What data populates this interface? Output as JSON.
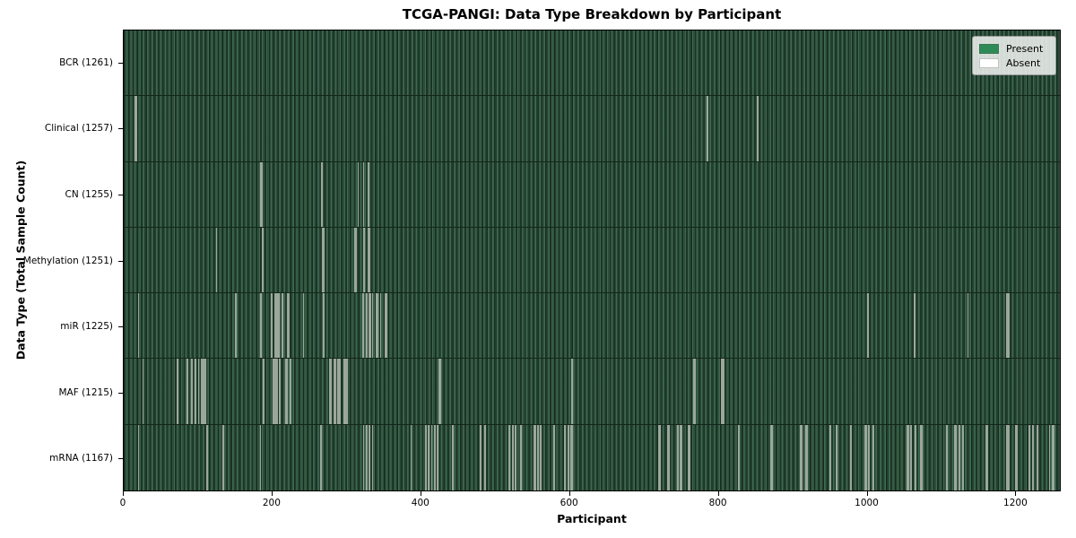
{
  "title": "TCGA-PANGI: Data Type Breakdown by Participant",
  "axes": {
    "xlabel": "Participant",
    "ylabel": "Data Type (Total Sample Count)",
    "x_ticks": [
      0,
      200,
      400,
      600,
      800,
      1000,
      1200
    ],
    "x_range": [
      0,
      1261
    ]
  },
  "legend": {
    "entries": [
      {
        "label": "Present",
        "color": "#2e8b57"
      },
      {
        "label": "Absent",
        "color": "#ffffff"
      }
    ]
  },
  "colors": {
    "present_fill": "#2e8b57",
    "present_rendered_dark": "#1f3c2c",
    "present_rendered_light": "#3f6a50",
    "absent_line": "#9ca79c",
    "plot_border": "#000000",
    "legend_bg": "#eef0ee"
  },
  "chart_data": {
    "type": "heatmap",
    "title": "TCGA-PANGI: Data Type Breakdown by Participant",
    "xlabel": "Participant",
    "ylabel": "Data Type (Total Sample Count)",
    "x_range": [
      0,
      1261
    ],
    "n_participants": 1261,
    "legend_position": "upper right",
    "grid": false,
    "rows": [
      {
        "label": "BCR (1261)",
        "name": "BCR",
        "total": 1261,
        "absent": []
      },
      {
        "label": "Clinical (1257)",
        "name": "Clinical",
        "total": 1257,
        "absent": [
          15,
          16,
          785,
          853
        ]
      },
      {
        "label": "CN (1255)",
        "name": "CN",
        "total": 1255,
        "absent": [
          184,
          185,
          266,
          315,
          322,
          329
        ]
      },
      {
        "label": "Methylation (1251)",
        "name": "Methylation",
        "total": 1251,
        "absent": [
          124,
          186,
          267,
          268,
          311,
          312,
          322,
          323,
          329,
          330
        ]
      },
      {
        "label": "miR (1225)",
        "name": "miR",
        "total": 1225,
        "absent": [
          19,
          150,
          184,
          198,
          199,
          203,
          204,
          207,
          208,
          212,
          213,
          220,
          221,
          222,
          241,
          268,
          321,
          322,
          326,
          327,
          330,
          331,
          334,
          340,
          341,
          345,
          352,
          353,
          1001,
          1002,
          1064,
          1136,
          1188,
          1189,
          1190,
          1191
        ]
      },
      {
        "label": "MAF (1215)",
        "name": "MAF",
        "total": 1215,
        "absent": [
          25,
          71,
          72,
          84,
          85,
          91,
          95,
          96,
          100,
          104,
          105,
          108,
          109,
          187,
          200,
          201,
          202,
          203,
          204,
          205,
          206,
          209,
          218,
          219,
          223,
          224,
          277,
          278,
          283,
          284,
          288,
          289,
          290,
          296,
          297,
          298,
          299,
          300,
          424,
          425,
          603,
          767,
          768,
          805,
          806,
          807
        ]
      },
      {
        "label": "mRNA (1167)",
        "name": "mRNA",
        "total": 1167,
        "absent": [
          19,
          111,
          133,
          183,
          265,
          322,
          326,
          330,
          334,
          386,
          406,
          410,
          414,
          418,
          422,
          442,
          479,
          480,
          485,
          486,
          518,
          519,
          523,
          527,
          534,
          552,
          553,
          557,
          561,
          579,
          593,
          594,
          598,
          602,
          603,
          720,
          721,
          732,
          733,
          745,
          746,
          749,
          750,
          760,
          761,
          827,
          828,
          871,
          872,
          911,
          912,
          918,
          919,
          950,
          951,
          959,
          960,
          978,
          979,
          998,
          999,
          1002,
          1003,
          1008,
          1009,
          1055,
          1056,
          1059,
          1060,
          1065,
          1066,
          1073,
          1074,
          1107,
          1108,
          1119,
          1120,
          1124,
          1125,
          1129,
          1130,
          1161,
          1162,
          1188,
          1189,
          1191,
          1201,
          1202,
          1219,
          1224,
          1230,
          1246,
          1250,
          1252
        ]
      }
    ]
  }
}
